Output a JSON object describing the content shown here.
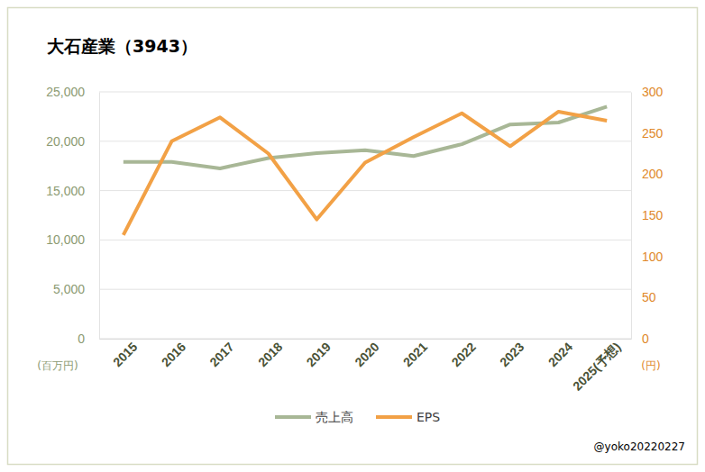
{
  "chart_data": {
    "type": "line",
    "title": "大石産業（3943）",
    "y_label": "(百万円)",
    "y2_label": "(円)",
    "annotation": "@yoko20220227",
    "categories": [
      "2015",
      "2016",
      "2017",
      "2018",
      "2019",
      "2020",
      "2021",
      "2022",
      "2023",
      "2024",
      "2025(予想)"
    ],
    "series": [
      {
        "name": "売上高",
        "color": "#a8b796",
        "type": "line",
        "values": [
          17900,
          17900,
          17250,
          18300,
          18800,
          19100,
          18500,
          19700,
          21700,
          21900,
          23500
        ]
      },
      {
        "name": "EPS",
        "color": "#f2a146",
        "type": "line",
        "axis": "y2",
        "values": [
          126,
          240,
          269,
          225,
          145,
          214,
          245,
          274,
          234,
          276,
          265
        ]
      }
    ],
    "ylim": [
      0,
      25000
    ],
    "yticks": [
      0,
      {
        "value": 5000,
        "label": "5,000"
      },
      {
        "value": 10000,
        "label": "10,000"
      },
      {
        "value": 15000,
        "label": "15,000"
      },
      {
        "value": 20000,
        "label": "20,000"
      },
      {
        "value": 25000,
        "label": "25,000"
      }
    ],
    "y2lim": [
      0,
      300
    ],
    "y2ticks": [
      0,
      50,
      100,
      150,
      200,
      250,
      300
    ],
    "grid": true,
    "legend": "bottom"
  }
}
